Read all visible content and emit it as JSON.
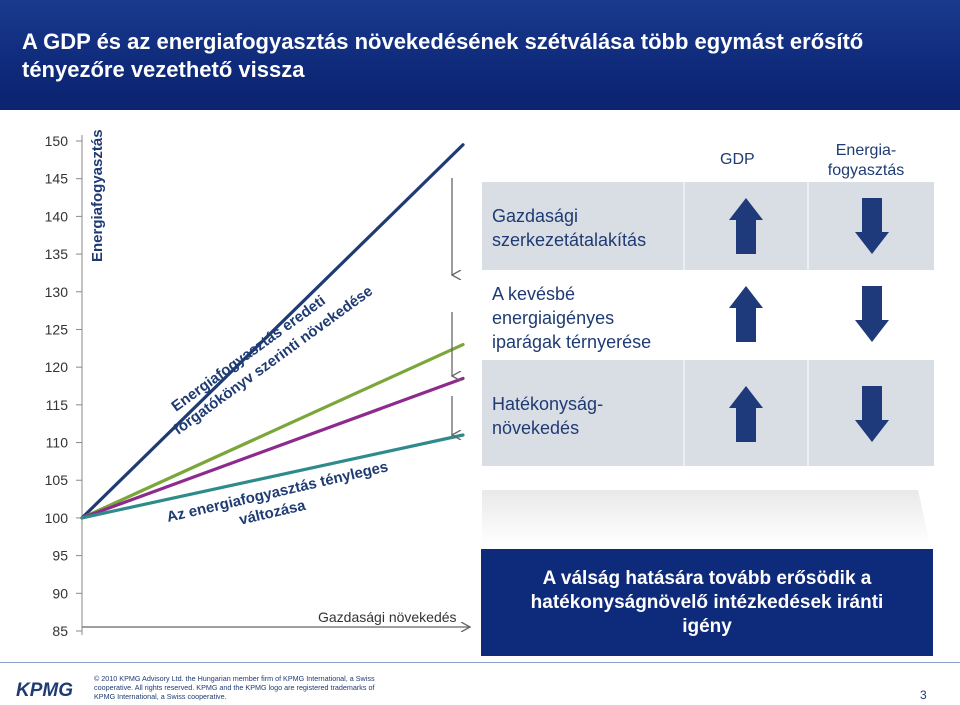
{
  "title": "A GDP és az energiafogyasztás növekedésének szétválása több egymást erősítő tényezőre vezethető vissza",
  "chart_data": {
    "type": "line",
    "y_ticks": [
      150,
      145,
      140,
      135,
      130,
      125,
      120,
      115,
      110,
      105,
      100,
      95,
      90,
      85
    ],
    "ylim": [
      85,
      150
    ],
    "x_start": 0,
    "x_end": 1,
    "series": [
      {
        "key": "baseline",
        "color": "#1f3b73",
        "values": [
          100,
          149.5
        ]
      },
      {
        "key": "expected",
        "color": "#7aa63a",
        "values": [
          100,
          123
        ]
      },
      {
        "key": "actual",
        "color": "#8e2a8e",
        "values": [
          100,
          118.5
        ]
      },
      {
        "key": "gdp",
        "color": "#2e8b8b",
        "values": [
          100,
          111
        ]
      }
    ],
    "labels": {
      "energy_axis": "Energiafogyasztás",
      "original_scenario": "Energiafogyasztás eredeti forgatókönyv szerinti növekedése",
      "actual_change": "Az energiafogyasztás tényleges változása",
      "gdp_growth": "Gazdasági növekedés"
    }
  },
  "table": {
    "col_gdp": "GDP",
    "col_energy": "Energia-fogyasztás",
    "rows": [
      {
        "label": "Gazdasági szerkezetátalakítás",
        "gdp": "up",
        "energy": "down"
      },
      {
        "label": "A kevésbé energiaigényes iparágak térnyerése",
        "gdp": "up",
        "energy": "down"
      },
      {
        "label": "Hatékonyság-növekedés",
        "gdp": "up",
        "energy": "down"
      }
    ]
  },
  "conclusion": "A válság hatására tovább erősödik a hatékonyságnövelő intézkedések iránti igény",
  "footer": {
    "legal": "© 2010 KPMG Advisory Ltd. the Hungarian member firm of KPMG International, a Swiss cooperative. All rights reserved. KPMG and the KPMG logo are registered trademarks of KPMG International, a Swiss cooperative.",
    "logo_text": "KPMG",
    "page": "3"
  },
  "colors": {
    "title_bg": "#0f2a7a",
    "row_band": "#d9dde4",
    "arrow": "#1e3a7a",
    "conclusion_bg": "#0e2a7a"
  }
}
